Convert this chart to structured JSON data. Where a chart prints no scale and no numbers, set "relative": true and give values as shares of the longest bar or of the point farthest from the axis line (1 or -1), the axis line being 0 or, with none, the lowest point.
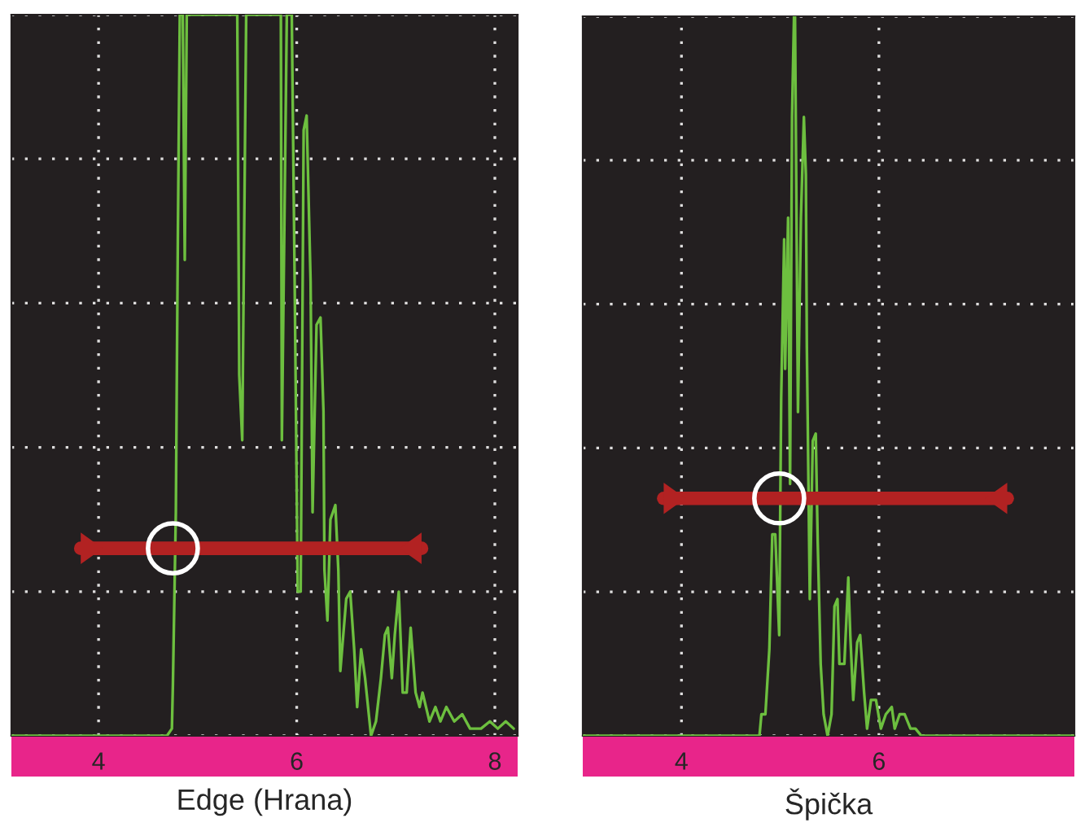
{
  "chart_data": [
    {
      "type": "line",
      "xlabel": "Edge (Hrana)",
      "relative": true,
      "xlim": [
        3.12,
        8.23
      ],
      "xticks": [
        4,
        6,
        8
      ],
      "tick_labels": "x",
      "grid": true,
      "line_style": "solid",
      "marker": "none",
      "series": [
        {
          "color": "#6dbf3f",
          "x": [
            3.12,
            3.57,
            4.69,
            4.74,
            4.75,
            4.78,
            4.8,
            4.82,
            4.85,
            4.87,
            4.89,
            5.4,
            5.42,
            5.45,
            5.49,
            5.84,
            5.85,
            5.89,
            5.9,
            5.95,
            5.98,
            6.01,
            6.04,
            6.07,
            6.1,
            6.14,
            6.16,
            6.2,
            6.24,
            6.27,
            6.28,
            6.31,
            6.34,
            6.39,
            6.42,
            6.44,
            6.5,
            6.54,
            6.58,
            6.61,
            6.65,
            6.69,
            6.75,
            6.8,
            6.85,
            6.89,
            6.92,
            6.96,
            6.99,
            7.03,
            7.07,
            7.11,
            7.15,
            7.2,
            7.24,
            7.27,
            7.34,
            7.4,
            7.45,
            7.51,
            7.59,
            7.67,
            7.75,
            7.86,
            7.95,
            8.03,
            8.11,
            8.19
          ],
          "values": [
            0,
            0,
            0,
            0.01,
            0.07,
            0.31,
            0.69,
            1,
            1,
            0.66,
            1,
            1,
            0.5,
            0.41,
            1,
            1,
            0.41,
            0.88,
            1,
            1,
            0.62,
            0.2,
            0.2,
            0.84,
            0.86,
            0.63,
            0.31,
            0.57,
            0.58,
            0.45,
            0.23,
            0.16,
            0.3,
            0.32,
            0.23,
            0.09,
            0.19,
            0.2,
            0.12,
            0.04,
            0.12,
            0.08,
            0,
            0.02,
            0.08,
            0.14,
            0.15,
            0.08,
            0.14,
            0.2,
            0.06,
            0.06,
            0.15,
            0.06,
            0.04,
            0.06,
            0.02,
            0.04,
            0.02,
            0.04,
            0.02,
            0.03,
            0.01,
            0.01,
            0.02,
            0.01,
            0.02,
            0.01
          ]
        },
        {
          "color": "#b22222",
          "x": [
            3.82,
            7.26
          ],
          "values": [
            0.26,
            0.26
          ]
        }
      ]
    },
    {
      "type": "line",
      "xlabel": "Špička",
      "relative": true,
      "xlim": [
        3.0,
        7.98
      ],
      "xticks": [
        4,
        6
      ],
      "tick_labels": "x",
      "grid": true,
      "line_style": "solid",
      "marker": "none",
      "series": [
        {
          "color": "#6dbf3f",
          "x": [
            3.0,
            4.79,
            4.81,
            4.85,
            4.89,
            4.92,
            4.95,
            4.99,
            5.01,
            5.04,
            5.05,
            5.08,
            5.1,
            5.12,
            5.14,
            5.15,
            5.18,
            5.21,
            5.24,
            5.26,
            5.27,
            5.3,
            5.33,
            5.36,
            5.38,
            5.41,
            5.44,
            5.48,
            5.52,
            5.55,
            5.58,
            5.6,
            5.65,
            5.69,
            5.71,
            5.74,
            5.78,
            5.81,
            5.85,
            5.88,
            5.92,
            5.97,
            6.02,
            6.07,
            6.13,
            6.16,
            6.21,
            6.26,
            6.32,
            6.37,
            6.43,
            7.98
          ],
          "values": [
            0,
            0,
            0.03,
            0.03,
            0.12,
            0.28,
            0.28,
            0.14,
            0.47,
            0.69,
            0.51,
            0.72,
            0.35,
            0.86,
            1,
            1,
            0.45,
            0.72,
            0.86,
            0.78,
            0.54,
            0.19,
            0.41,
            0.42,
            0.27,
            0.1,
            0.03,
            0,
            0.03,
            0.18,
            0.19,
            0.1,
            0.1,
            0.22,
            0.14,
            0.05,
            0.13,
            0.14,
            0.06,
            0.01,
            0.05,
            0.05,
            0.01,
            0.03,
            0.04,
            0.01,
            0.03,
            0.03,
            0.01,
            0.01,
            0,
            0
          ]
        },
        {
          "color": "#b22222",
          "x": [
            3.82,
            7.3
          ],
          "values": [
            0.33,
            0.33
          ]
        }
      ]
    }
  ]
}
